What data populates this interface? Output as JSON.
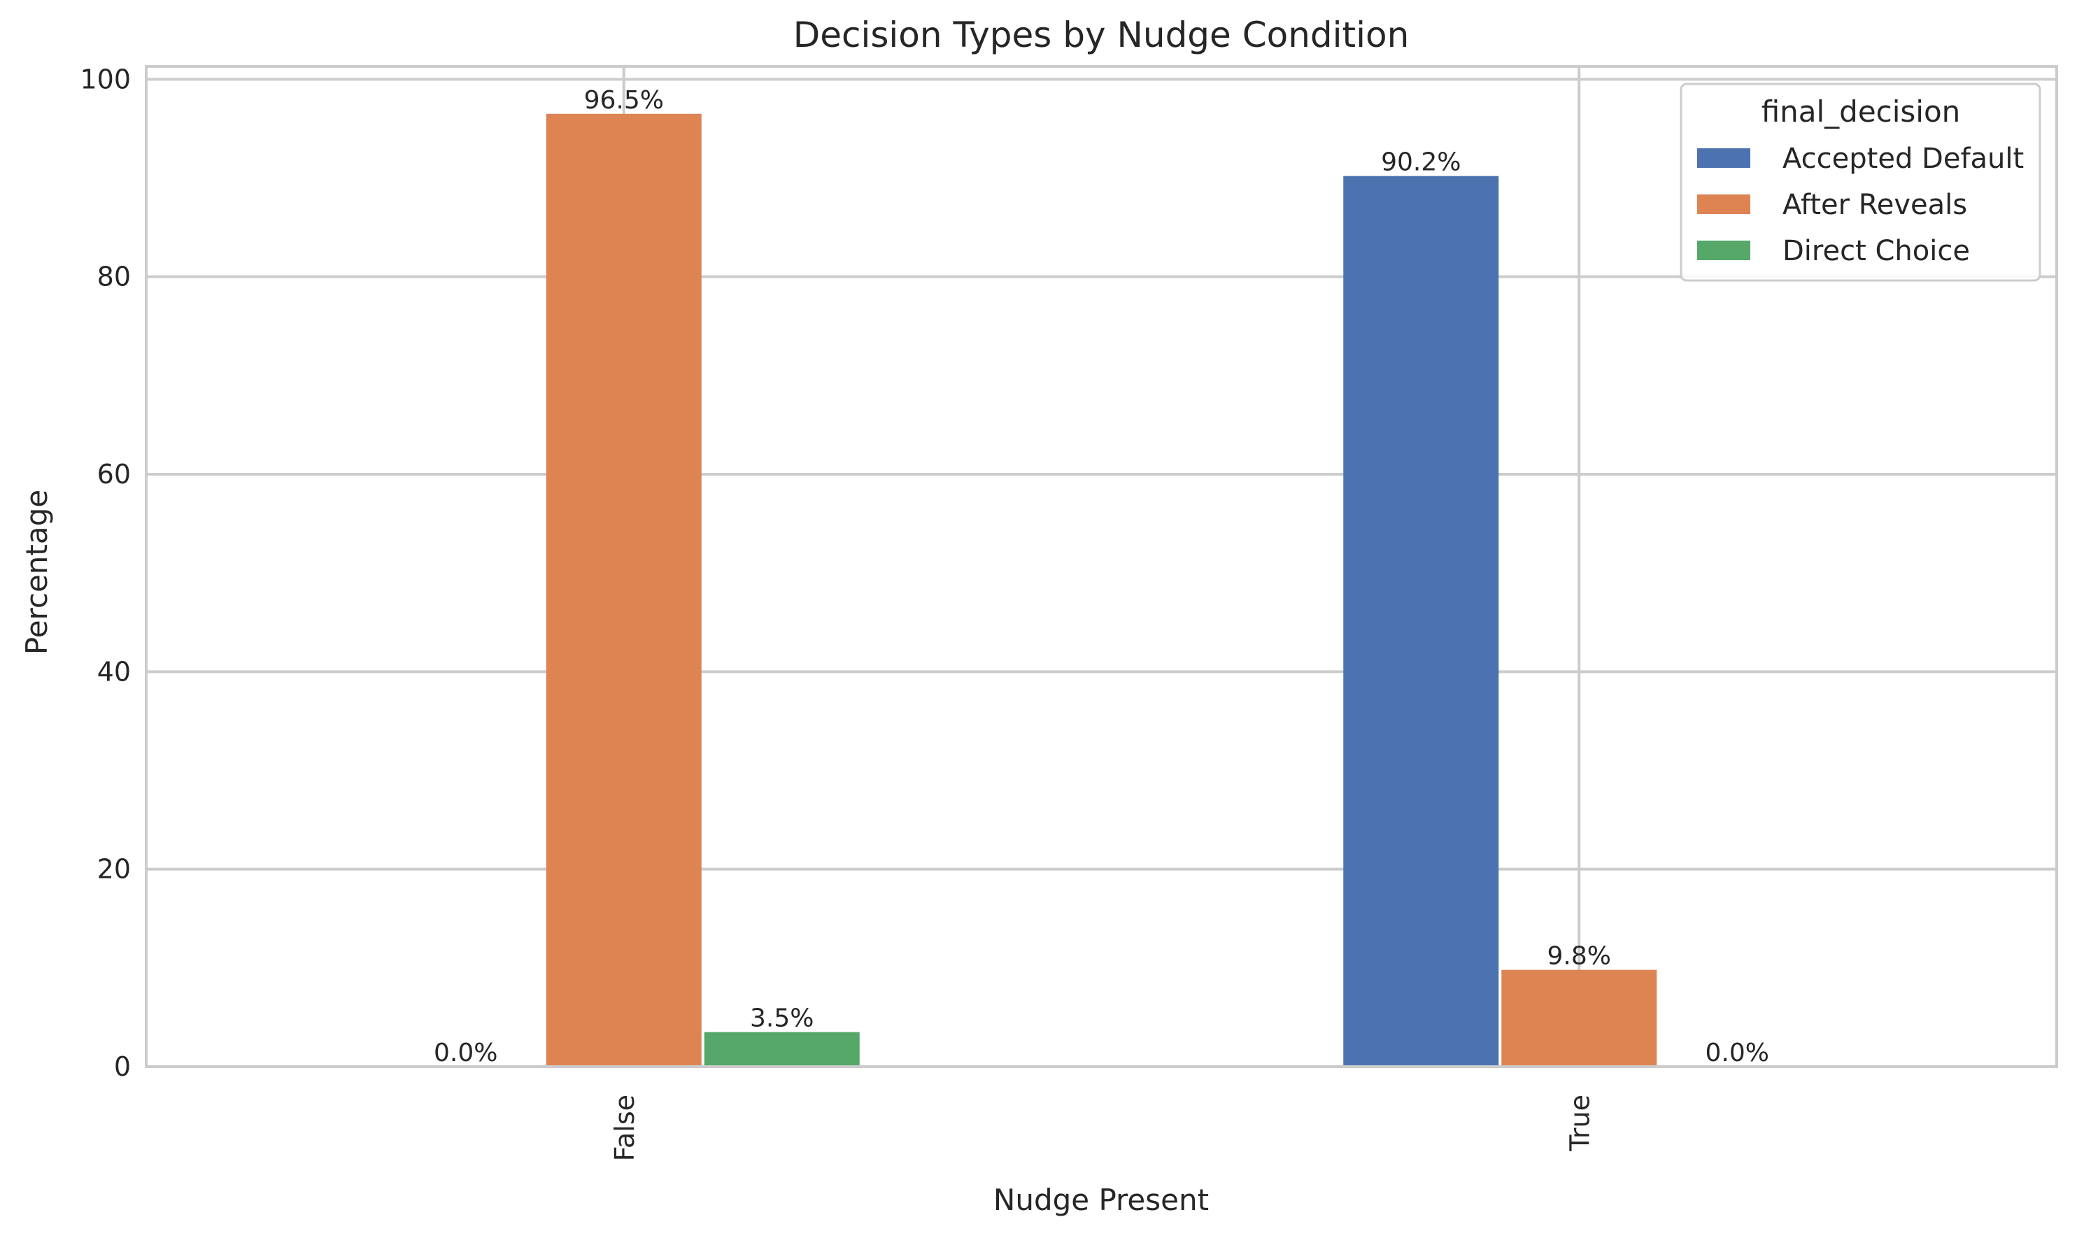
{
  "chart_data": {
    "type": "bar",
    "title": "Decision Types by Nudge Condition",
    "xlabel": "Nudge Present",
    "ylabel": "Percentage",
    "categories": [
      "False",
      "True"
    ],
    "series": [
      {
        "name": "Accepted Default",
        "values": [
          0.0,
          90.2
        ],
        "labels": [
          "0.0%",
          "90.2%"
        ],
        "color": "#4c72b0"
      },
      {
        "name": "After Reveals",
        "values": [
          96.5,
          9.8
        ],
        "labels": [
          "96.5%",
          "9.8%"
        ],
        "color": "#dd8452"
      },
      {
        "name": "Direct Choice",
        "values": [
          3.5,
          0.0
        ],
        "labels": [
          "3.5%",
          "0.0%"
        ],
        "color": "#55a868"
      }
    ],
    "ylim": [
      0,
      101.3
    ],
    "yticks": [
      0,
      20,
      40,
      60,
      80,
      100
    ],
    "grid": true,
    "legend": {
      "title": "final_decision",
      "placement": "top-right"
    },
    "xtick_rotation": "vertical"
  }
}
